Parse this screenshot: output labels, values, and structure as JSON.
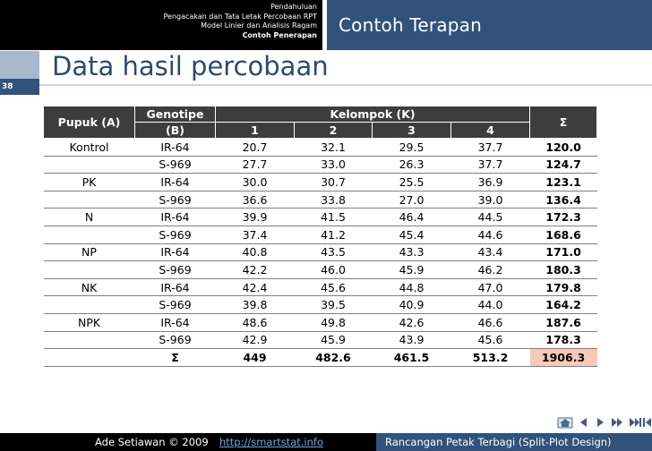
{
  "header": {
    "breadcrumbs": [
      "Pendahuluan",
      "Pengacakan dan Tata Letak Percobaan RPT",
      "Model Linier dan Analisis Ragam",
      "Contoh Penerapan"
    ],
    "section_title": "Contoh Terapan"
  },
  "slide": {
    "title": "Data hasil percobaan",
    "number": "38"
  },
  "table": {
    "headers": {
      "pupuk": "Pupuk (A)",
      "genotipe_line1": "Genotipe",
      "genotipe_line2": "(B)",
      "kelompok": "Kelompok (K)",
      "sum": "Σ",
      "k": [
        "1",
        "2",
        "3",
        "4"
      ]
    },
    "rows": [
      {
        "pupuk": "Kontrol",
        "genotipe": "IR-64",
        "k": [
          "20.7",
          "32.1",
          "29.5",
          "37.7"
        ],
        "sum": "120.0"
      },
      {
        "pupuk": "",
        "genotipe": "S-969",
        "k": [
          "27.7",
          "33.0",
          "26.3",
          "37.7"
        ],
        "sum": "124.7"
      },
      {
        "pupuk": "PK",
        "genotipe": "IR-64",
        "k": [
          "30.0",
          "30.7",
          "25.5",
          "36.9"
        ],
        "sum": "123.1"
      },
      {
        "pupuk": "",
        "genotipe": "S-969",
        "k": [
          "36.6",
          "33.8",
          "27.0",
          "39.0"
        ],
        "sum": "136.4"
      },
      {
        "pupuk": "N",
        "genotipe": "IR-64",
        "k": [
          "39.9",
          "41.5",
          "46.4",
          "44.5"
        ],
        "sum": "172.3"
      },
      {
        "pupuk": "",
        "genotipe": "S-969",
        "k": [
          "37.4",
          "41.2",
          "45.4",
          "44.6"
        ],
        "sum": "168.6"
      },
      {
        "pupuk": "NP",
        "genotipe": "IR-64",
        "k": [
          "40.8",
          "43.5",
          "43.3",
          "43.4"
        ],
        "sum": "171.0"
      },
      {
        "pupuk": "",
        "genotipe": "S-969",
        "k": [
          "42.2",
          "46.0",
          "45.9",
          "46.2"
        ],
        "sum": "180.3"
      },
      {
        "pupuk": "NK",
        "genotipe": "IR-64",
        "k": [
          "42.4",
          "45.6",
          "44.8",
          "47.0"
        ],
        "sum": "179.8"
      },
      {
        "pupuk": "",
        "genotipe": "S-969",
        "k": [
          "39.8",
          "39.5",
          "40.9",
          "44.0"
        ],
        "sum": "164.2"
      },
      {
        "pupuk": "NPK",
        "genotipe": "IR-64",
        "k": [
          "48.6",
          "49.8",
          "42.6",
          "46.6"
        ],
        "sum": "187.6"
      },
      {
        "pupuk": "",
        "genotipe": "S-969",
        "k": [
          "42.9",
          "45.9",
          "43.9",
          "45.6"
        ],
        "sum": "178.3"
      }
    ],
    "total": {
      "label": "Σ",
      "k": [
        "449",
        "482.6",
        "461.5",
        "513.2"
      ],
      "sum": "1906.3"
    }
  },
  "footer": {
    "author": "Ade Setiawan © 2009",
    "link": "http://smartstat.info",
    "topic": "Rancangan Petak Terbagi (Split-Plot Design)"
  },
  "nav_icons": [
    "home-icon",
    "back-icon",
    "previous-icon",
    "next-icon",
    "last-icon",
    "first-icon"
  ],
  "colors": {
    "header_dark": "#000000",
    "header_blue": "#31527a",
    "title_text": "#2b4a72",
    "table_header": "#3d3d3d",
    "grand_total_bg": "#f7c9b8"
  }
}
